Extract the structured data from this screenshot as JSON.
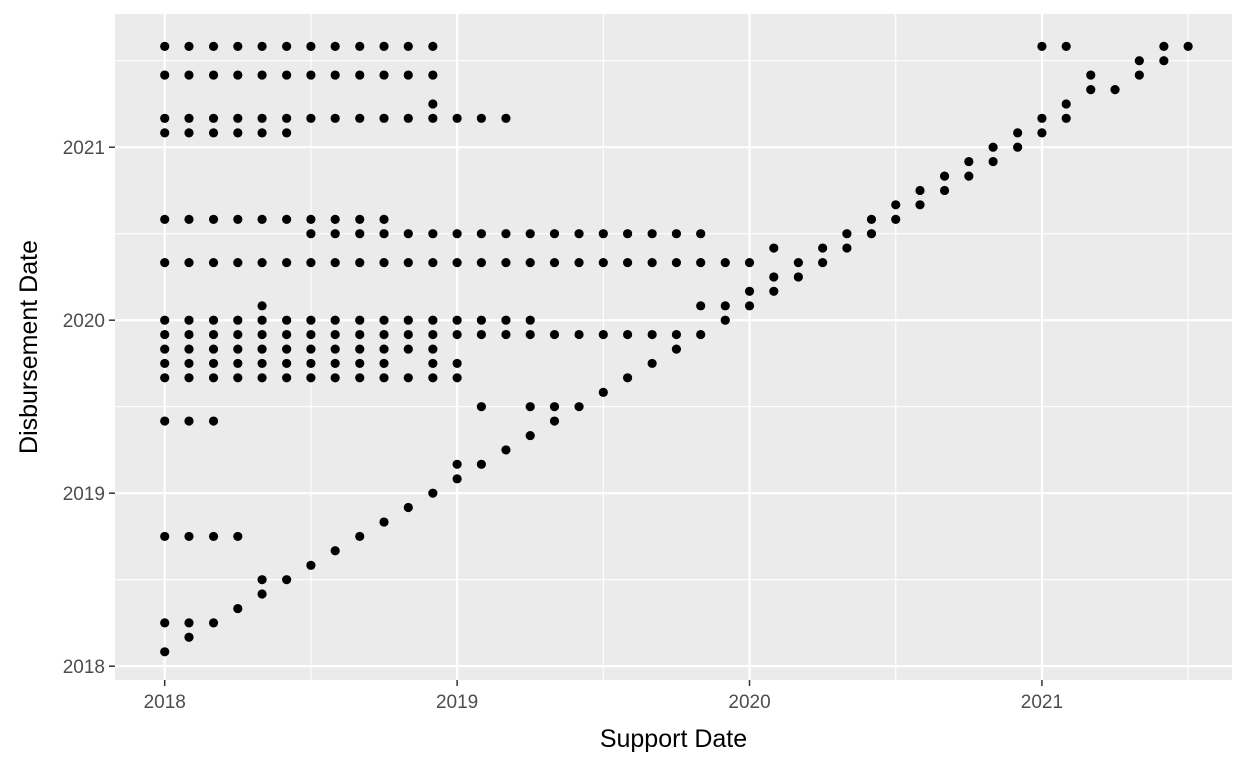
{
  "chart_data": {
    "type": "scatter",
    "title": "",
    "xlabel": "Support Date",
    "ylabel": "Disbursement Date",
    "xlim": [
      2017.83,
      2021.65
    ],
    "ylim": [
      2017.92,
      2021.77
    ],
    "x_ticks": [
      2018,
      2019,
      2020,
      2021
    ],
    "y_ticks": [
      2018,
      2019,
      2020,
      2021
    ],
    "grid": true,
    "legend": "none",
    "colors": {
      "panel": "#ebebeb",
      "grid": "#ffffff",
      "point": "#000000"
    },
    "rows": [
      {
        "y": 2021.583,
        "x": [
          2018.0,
          2018.083,
          2018.167,
          2018.25,
          2018.333,
          2018.417,
          2018.5,
          2018.583,
          2018.667,
          2018.75,
          2018.833,
          2018.917,
          2021.0,
          2021.083,
          2021.417,
          2021.5
        ]
      },
      {
        "y": 2021.5,
        "x": [
          2021.333,
          2021.417
        ]
      },
      {
        "y": 2021.417,
        "x": [
          2018.0,
          2018.083,
          2018.167,
          2018.25,
          2018.333,
          2018.417,
          2018.5,
          2018.583,
          2018.667,
          2018.75,
          2018.833,
          2018.917,
          2021.167,
          2021.333
        ]
      },
      {
        "y": 2021.333,
        "x": [
          2021.167,
          2021.25
        ]
      },
      {
        "y": 2021.25,
        "x": [
          2018.917,
          2021.083
        ]
      },
      {
        "y": 2021.167,
        "x": [
          2018.0,
          2018.083,
          2018.167,
          2018.25,
          2018.333,
          2018.417,
          2018.5,
          2018.583,
          2018.667,
          2018.75,
          2018.833,
          2018.917,
          2019.0,
          2019.083,
          2019.167,
          2021.0,
          2021.083
        ]
      },
      {
        "y": 2021.083,
        "x": [
          2018.0,
          2018.083,
          2018.167,
          2018.25,
          2018.333,
          2018.417,
          2020.917,
          2021.0
        ]
      },
      {
        "y": 2021.0,
        "x": [
          2020.833,
          2020.917
        ]
      },
      {
        "y": 2020.917,
        "x": [
          2020.75,
          2020.833
        ]
      },
      {
        "y": 2020.833,
        "x": [
          2020.667,
          2020.75
        ]
      },
      {
        "y": 2020.75,
        "x": [
          2020.583,
          2020.667
        ]
      },
      {
        "y": 2020.667,
        "x": [
          2020.5,
          2020.583
        ]
      },
      {
        "y": 2020.583,
        "x": [
          2018.0,
          2018.083,
          2018.167,
          2018.25,
          2018.333,
          2018.417,
          2018.5,
          2018.583,
          2018.667,
          2018.75,
          2020.417,
          2020.5
        ]
      },
      {
        "y": 2020.5,
        "x": [
          2018.5,
          2018.583,
          2018.667,
          2018.75,
          2018.833,
          2018.917,
          2019.0,
          2019.083,
          2019.167,
          2019.25,
          2019.333,
          2019.417,
          2019.5,
          2019.583,
          2019.667,
          2019.75,
          2019.833,
          2020.333,
          2020.417
        ]
      },
      {
        "y": 2020.417,
        "x": [
          2020.083,
          2020.25,
          2020.333
        ]
      },
      {
        "y": 2020.333,
        "x": [
          2018.0,
          2018.083,
          2018.167,
          2018.25,
          2018.333,
          2018.417,
          2018.5,
          2018.583,
          2018.667,
          2018.75,
          2018.833,
          2018.917,
          2019.0,
          2019.083,
          2019.167,
          2019.25,
          2019.333,
          2019.417,
          2019.5,
          2019.583,
          2019.667,
          2019.75,
          2019.833,
          2019.917,
          2020.0,
          2020.167,
          2020.25
        ]
      },
      {
        "y": 2020.25,
        "x": [
          2020.083,
          2020.167
        ]
      },
      {
        "y": 2020.167,
        "x": [
          2020.0,
          2020.083
        ]
      },
      {
        "y": 2020.083,
        "x": [
          2018.333,
          2019.833,
          2019.917,
          2020.0
        ]
      },
      {
        "y": 2020.0,
        "x": [
          2018.0,
          2018.083,
          2018.167,
          2018.25,
          2018.333,
          2018.417,
          2018.5,
          2018.583,
          2018.667,
          2018.75,
          2018.833,
          2018.917,
          2019.0,
          2019.083,
          2019.167,
          2019.25,
          2019.917
        ]
      },
      {
        "y": 2019.917,
        "x": [
          2018.0,
          2018.083,
          2018.167,
          2018.25,
          2018.333,
          2018.417,
          2018.5,
          2018.583,
          2018.667,
          2018.75,
          2018.833,
          2018.917,
          2019.0,
          2019.083,
          2019.167,
          2019.25,
          2019.333,
          2019.417,
          2019.5,
          2019.583,
          2019.667,
          2019.75,
          2019.833
        ]
      },
      {
        "y": 2019.833,
        "x": [
          2018.0,
          2018.083,
          2018.167,
          2018.25,
          2018.333,
          2018.417,
          2018.5,
          2018.583,
          2018.667,
          2018.75,
          2018.833,
          2018.917,
          2019.75
        ]
      },
      {
        "y": 2019.75,
        "x": [
          2018.0,
          2018.083,
          2018.167,
          2018.25,
          2018.333,
          2018.417,
          2018.5,
          2018.583,
          2018.667,
          2018.75,
          2018.917,
          2019.0,
          2019.667
        ]
      },
      {
        "y": 2019.667,
        "x": [
          2018.0,
          2018.083,
          2018.167,
          2018.25,
          2018.333,
          2018.417,
          2018.5,
          2018.583,
          2018.667,
          2018.75,
          2018.833,
          2018.917,
          2019.0,
          2019.583
        ]
      },
      {
        "y": 2019.583,
        "x": [
          2019.5
        ]
      },
      {
        "y": 2019.5,
        "x": [
          2019.083,
          2019.25,
          2019.333,
          2019.417
        ]
      },
      {
        "y": 2019.417,
        "x": [
          2018.0,
          2018.083,
          2018.167,
          2019.333
        ]
      },
      {
        "y": 2019.333,
        "x": [
          2019.25
        ]
      },
      {
        "y": 2019.25,
        "x": [
          2019.167
        ]
      },
      {
        "y": 2019.167,
        "x": [
          2019.0,
          2019.083
        ]
      },
      {
        "y": 2019.083,
        "x": [
          2019.0
        ]
      },
      {
        "y": 2019.0,
        "x": [
          2018.917
        ]
      },
      {
        "y": 2018.917,
        "x": [
          2018.833
        ]
      },
      {
        "y": 2018.833,
        "x": [
          2018.75
        ]
      },
      {
        "y": 2018.75,
        "x": [
          2018.0,
          2018.083,
          2018.167,
          2018.25,
          2018.667
        ]
      },
      {
        "y": 2018.667,
        "x": [
          2018.583
        ]
      },
      {
        "y": 2018.583,
        "x": [
          2018.5
        ]
      },
      {
        "y": 2018.5,
        "x": [
          2018.333,
          2018.417
        ]
      },
      {
        "y": 2018.417,
        "x": [
          2018.333
        ]
      },
      {
        "y": 2018.333,
        "x": [
          2018.25
        ]
      },
      {
        "y": 2018.25,
        "x": [
          2018.0,
          2018.083,
          2018.167
        ]
      },
      {
        "y": 2018.167,
        "x": [
          2018.083
        ]
      },
      {
        "y": 2018.083,
        "x": [
          2018.0
        ]
      }
    ]
  }
}
